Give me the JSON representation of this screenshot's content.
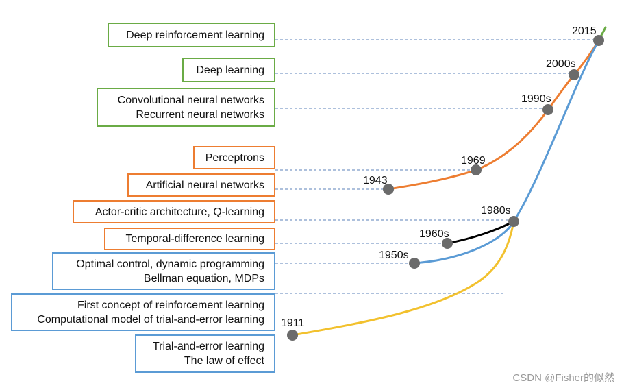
{
  "colors": {
    "green": "#6aab45",
    "orange": "#ed7d31",
    "blue": "#5b9bd5",
    "black": "#000000",
    "yellow": "#f2c12e",
    "node": "#6b6b6b"
  },
  "boxes": [
    {
      "id": "deep-rl",
      "color": "green",
      "lines": [
        "Deep reinforcement learning"
      ]
    },
    {
      "id": "deep-learning",
      "color": "green",
      "lines": [
        "Deep learning"
      ]
    },
    {
      "id": "cnn-rnn",
      "color": "green",
      "lines": [
        "Convolutional neural networks",
        "Recurrent neural networks"
      ]
    },
    {
      "id": "perceptrons",
      "color": "orange",
      "lines": [
        "Perceptrons"
      ]
    },
    {
      "id": "ann",
      "color": "orange",
      "lines": [
        "Artificial neural networks"
      ]
    },
    {
      "id": "actor-critic",
      "color": "orange",
      "lines": [
        "Actor-critic architecture, Q-learning"
      ]
    },
    {
      "id": "td-learning",
      "color": "orange",
      "lines": [
        "Temporal-difference learning"
      ]
    },
    {
      "id": "optimal-control",
      "color": "blue",
      "lines": [
        "Optimal control, dynamic programming",
        "Bellman equation, MDPs"
      ]
    },
    {
      "id": "first-concept",
      "color": "blue",
      "lines": [
        "First concept of reinforcement learning",
        "Computational model of trial-and-error learning"
      ]
    },
    {
      "id": "trial-error",
      "color": "blue",
      "lines": [
        "Trial-and-error learning",
        "The law of effect"
      ]
    }
  ],
  "nodes": [
    {
      "id": "y2015",
      "label": "2015"
    },
    {
      "id": "y2000s",
      "label": "2000s"
    },
    {
      "id": "y1990s",
      "label": "1990s"
    },
    {
      "id": "y1969",
      "label": "1969"
    },
    {
      "id": "y1943",
      "label": "1943"
    },
    {
      "id": "y1980s",
      "label": "1980s"
    },
    {
      "id": "y1960s",
      "label": "1960s"
    },
    {
      "id": "y1950s",
      "label": "1950s"
    },
    {
      "id": "y1911",
      "label": "1911"
    }
  ],
  "watermark": "CSDN @Fisher的似然"
}
